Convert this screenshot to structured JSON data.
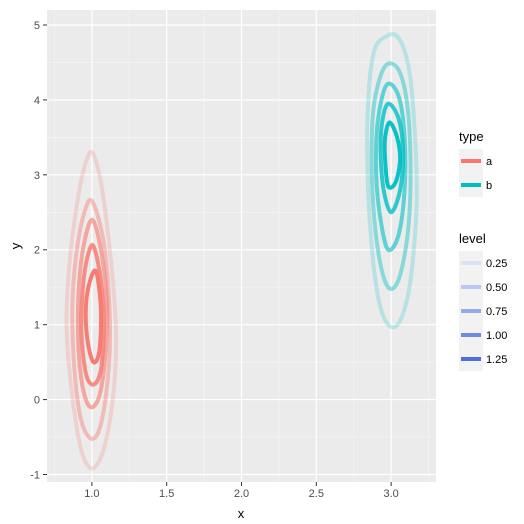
{
  "chart_data": {
    "type": "contour",
    "title": "",
    "xlabel": "x",
    "ylabel": "y",
    "xlim": [
      0.7,
      3.3
    ],
    "ylim": [
      -1.1,
      5.2
    ],
    "x_ticks": [
      "1.0",
      "1.5",
      "2.0",
      "2.5",
      "3.0"
    ],
    "y_ticks": [
      "-1",
      "0",
      "1",
      "2",
      "3",
      "4",
      "5"
    ],
    "grid": true,
    "background": "#ebebeb",
    "legend": {
      "placement": "right",
      "groups": [
        {
          "title": "type",
          "items": [
            {
              "label": "a",
              "color": "#f8766d"
            },
            {
              "label": "b",
              "color": "#00bfc4"
            }
          ]
        },
        {
          "title": "level",
          "items": [
            {
              "label": "0.25",
              "color": "#dbe2f4"
            },
            {
              "label": "0.50",
              "color": "#b9c8f0"
            },
            {
              "label": "0.75",
              "color": "#94aaea"
            },
            {
              "label": "1.00",
              "color": "#6f8ae3"
            },
            {
              "label": "1.25",
              "color": "#4f6fdc"
            }
          ]
        }
      ]
    },
    "series": [
      {
        "name": "a",
        "color": "#f8766d",
        "contours": [
          {
            "level": 0.25,
            "opacity": 0.22,
            "points": [
              [
                1.0,
                3.3
              ],
              [
                1.06,
                2.9
              ],
              [
                1.12,
                2.0
              ],
              [
                1.16,
                1.0
              ],
              [
                1.15,
                0.2
              ],
              [
                1.1,
                -0.5
              ],
              [
                1.04,
                -0.85
              ],
              [
                0.98,
                -0.9
              ],
              [
                0.92,
                -0.6
              ],
              [
                0.86,
                0.2
              ],
              [
                0.83,
                1.0
              ],
              [
                0.85,
                1.8
              ],
              [
                0.9,
                2.6
              ],
              [
                0.95,
                3.1
              ]
            ]
          },
          {
            "level": 0.5,
            "opacity": 0.42,
            "points": [
              [
                1.0,
                2.65
              ],
              [
                1.07,
                2.2
              ],
              [
                1.11,
                1.5
              ],
              [
                1.12,
                0.7
              ],
              [
                1.09,
                0.0
              ],
              [
                1.04,
                -0.45
              ],
              [
                0.98,
                -0.5
              ],
              [
                0.92,
                -0.2
              ],
              [
                0.88,
                0.5
              ],
              [
                0.87,
                1.3
              ],
              [
                0.9,
                2.0
              ],
              [
                0.95,
                2.5
              ]
            ]
          },
          {
            "level": 0.75,
            "opacity": 0.6,
            "points": [
              [
                1.0,
                2.4
              ],
              [
                1.06,
                2.0
              ],
              [
                1.1,
                1.3
              ],
              [
                1.09,
                0.6
              ],
              [
                1.05,
                0.05
              ],
              [
                0.99,
                -0.1
              ],
              [
                0.94,
                0.15
              ],
              [
                0.91,
                0.7
              ],
              [
                0.91,
                1.4
              ],
              [
                0.94,
                2.0
              ]
            ]
          },
          {
            "level": 1.0,
            "opacity": 0.8,
            "points": [
              [
                1.01,
                2.05
              ],
              [
                1.06,
                1.6
              ],
              [
                1.08,
                1.0
              ],
              [
                1.06,
                0.4
              ],
              [
                1.01,
                0.2
              ],
              [
                0.96,
                0.35
              ],
              [
                0.93,
                0.9
              ],
              [
                0.94,
                1.5
              ],
              [
                0.97,
                1.9
              ]
            ]
          },
          {
            "level": 1.25,
            "opacity": 0.95,
            "points": [
              [
                1.03,
                1.7
              ],
              [
                1.06,
                1.2
              ],
              [
                1.05,
                0.65
              ],
              [
                1.01,
                0.5
              ],
              [
                0.97,
                0.8
              ],
              [
                0.96,
                1.25
              ],
              [
                0.99,
                1.6
              ]
            ]
          }
        ]
      },
      {
        "name": "b",
        "color": "#00bfc4",
        "contours": [
          {
            "level": 0.25,
            "opacity": 0.22,
            "points": [
              [
                2.93,
                4.8
              ],
              [
                3.04,
                4.85
              ],
              [
                3.12,
                4.4
              ],
              [
                3.16,
                3.5
              ],
              [
                3.17,
                2.6
              ],
              [
                3.13,
                1.6
              ],
              [
                3.06,
                1.05
              ],
              [
                2.98,
                1.0
              ],
              [
                2.91,
                1.4
              ],
              [
                2.86,
                2.3
              ],
              [
                2.84,
                3.3
              ],
              [
                2.85,
                4.1
              ],
              [
                2.88,
                4.6
              ]
            ]
          },
          {
            "level": 0.5,
            "opacity": 0.42,
            "points": [
              [
                2.96,
                4.45
              ],
              [
                3.05,
                4.4
              ],
              [
                3.11,
                3.9
              ],
              [
                3.13,
                3.0
              ],
              [
                3.11,
                2.2
              ],
              [
                3.05,
                1.6
              ],
              [
                2.98,
                1.5
              ],
              [
                2.92,
                1.9
              ],
              [
                2.88,
                2.6
              ],
              [
                2.87,
                3.4
              ],
              [
                2.89,
                4.0
              ]
            ]
          },
          {
            "level": 0.75,
            "opacity": 0.6,
            "points": [
              [
                2.97,
                4.2
              ],
              [
                3.05,
                4.05
              ],
              [
                3.09,
                3.5
              ],
              [
                3.09,
                2.8
              ],
              [
                3.05,
                2.2
              ],
              [
                2.98,
                2.0
              ],
              [
                2.93,
                2.4
              ],
              [
                2.9,
                3.0
              ],
              [
                2.91,
                3.7
              ]
            ]
          },
          {
            "level": 1.0,
            "opacity": 0.8,
            "points": [
              [
                2.98,
                3.95
              ],
              [
                3.05,
                3.75
              ],
              [
                3.08,
                3.3
              ],
              [
                3.06,
                2.8
              ],
              [
                3.0,
                2.5
              ],
              [
                2.95,
                2.8
              ],
              [
                2.93,
                3.3
              ],
              [
                2.94,
                3.7
              ]
            ]
          },
          {
            "level": 1.25,
            "opacity": 0.95,
            "points": [
              [
                2.99,
                3.7
              ],
              [
                3.04,
                3.5
              ],
              [
                3.06,
                3.2
              ],
              [
                3.03,
                2.9
              ],
              [
                2.98,
                2.85
              ],
              [
                2.96,
                3.2
              ],
              [
                2.96,
                3.5
              ]
            ]
          }
        ]
      }
    ]
  }
}
